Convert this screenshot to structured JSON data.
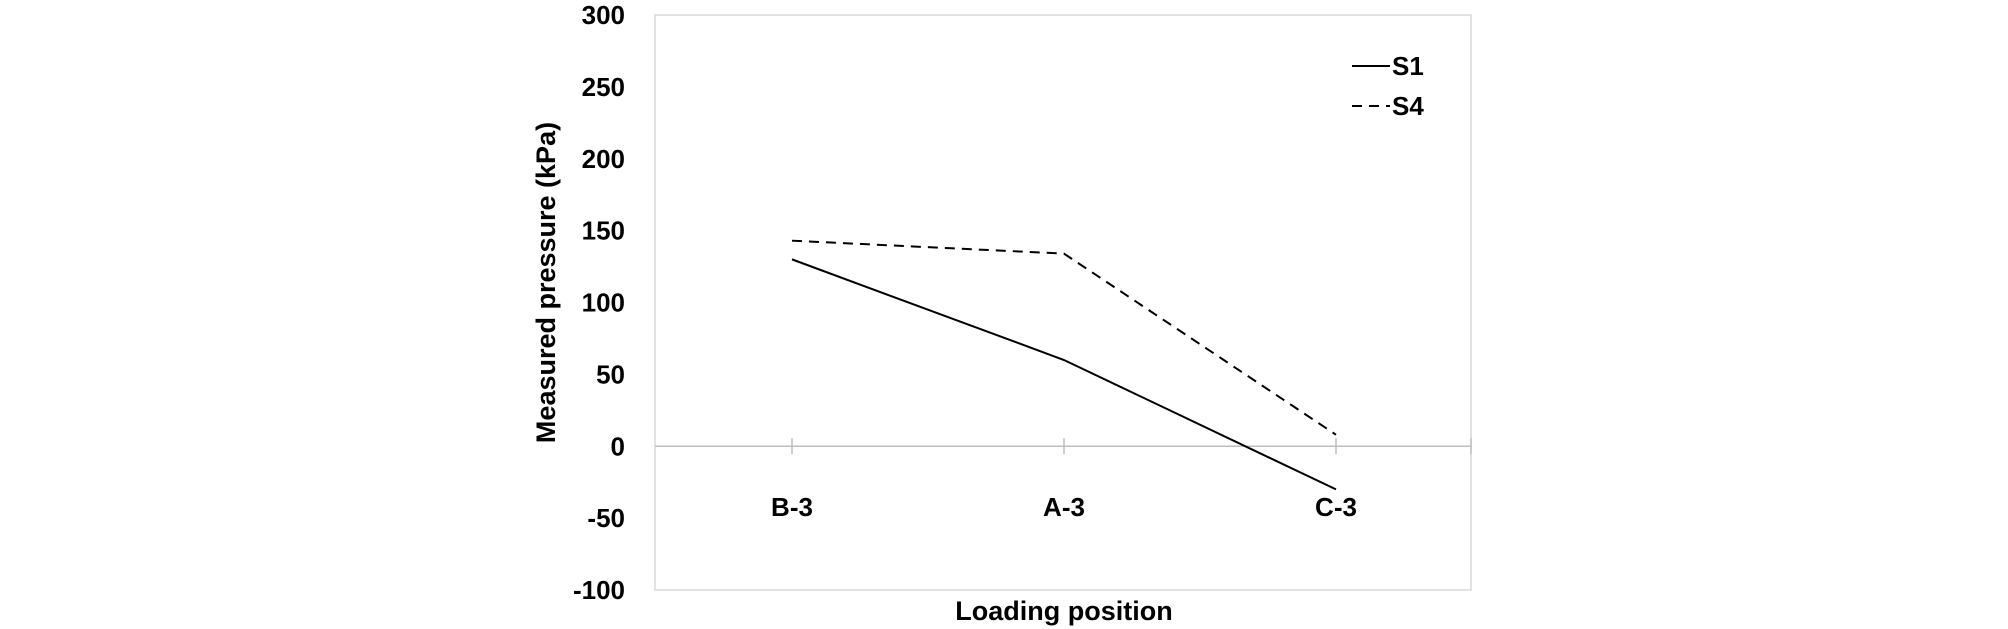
{
  "chart_data": {
    "type": "line",
    "title": "",
    "xlabel": "Loading position",
    "ylabel": "Measured pressure (kPa)",
    "categories": [
      "B-3",
      "A-3",
      "C-3"
    ],
    "ylim": [
      -100,
      300
    ],
    "yticks": [
      300,
      250,
      200,
      150,
      100,
      50,
      0,
      -50,
      -100
    ],
    "grid": false,
    "legend_position": "top-right",
    "series": [
      {
        "name": "S1",
        "values": [
          130,
          60,
          -30
        ],
        "dash": "solid",
        "color": "#000000"
      },
      {
        "name": "S4",
        "values": [
          143,
          134,
          8
        ],
        "dash": "dashed",
        "color": "#000000"
      }
    ]
  }
}
